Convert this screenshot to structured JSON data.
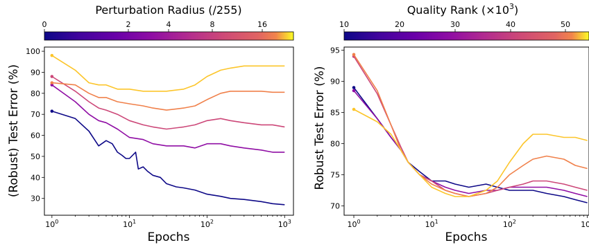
{
  "chart_data": [
    {
      "type": "line",
      "colorbar": {
        "title": "Perturbation Radius (/255)",
        "tick_labels": [
          "0",
          "2",
          "4",
          "8",
          "16"
        ],
        "colormap": "plasma"
      },
      "xlabel": "Epochs",
      "ylabel": "(Robust) Test Error (%)",
      "xscale": "log",
      "xlim": [
        0.8,
        1300
      ],
      "ylim": [
        22,
        102
      ],
      "xticks": [
        1,
        10,
        100,
        1000
      ],
      "xtick_labels": [
        "10",
        "10",
        "10",
        "10"
      ],
      "xtick_exponents": [
        "0",
        "1",
        "2",
        "3"
      ],
      "yticks": [
        30,
        40,
        50,
        60,
        70,
        80,
        90,
        100
      ],
      "ytick_labels": [
        "30",
        "40",
        "50",
        "60",
        "70",
        "80",
        "90",
        "100"
      ],
      "series": [
        {
          "color": "#0d0887",
          "x": [
            1,
            2,
            3,
            4,
            5,
            6,
            7,
            8,
            9,
            10,
            12,
            13,
            15,
            17,
            20,
            25,
            30,
            40,
            50,
            70,
            100,
            150,
            200,
            300,
            500,
            700,
            1000
          ],
          "y": [
            71.5,
            68,
            62,
            55,
            57.5,
            56,
            52,
            50.5,
            49,
            49,
            52,
            44,
            45,
            43,
            41,
            40,
            37,
            35.5,
            35,
            34,
            32,
            31,
            30,
            29.5,
            28.5,
            27.5,
            27
          ]
        },
        {
          "color": "#8f0da4",
          "x": [
            1,
            2,
            3,
            4,
            5,
            7,
            10,
            15,
            20,
            30,
            50,
            70,
            100,
            150,
            200,
            300,
            500,
            700,
            1000
          ],
          "y": [
            84,
            76,
            70,
            67,
            66,
            63,
            59,
            58,
            56,
            55,
            55,
            54,
            56,
            56,
            55,
            54,
            53,
            52,
            52
          ]
        },
        {
          "color": "#cc4778",
          "x": [
            1,
            2,
            3,
            4,
            5,
            7,
            10,
            15,
            20,
            30,
            50,
            70,
            100,
            150,
            200,
            300,
            500,
            700,
            1000
          ],
          "y": [
            88,
            81,
            76,
            73,
            72,
            70,
            67,
            65,
            64,
            63,
            64,
            65,
            67,
            68,
            67,
            66,
            65,
            65,
            64
          ]
        },
        {
          "color": "#f0804a",
          "x": [
            1,
            2,
            3,
            4,
            5,
            7,
            10,
            15,
            20,
            30,
            50,
            70,
            100,
            150,
            200,
            300,
            500,
            700,
            1000
          ],
          "y": [
            85,
            84,
            80,
            78,
            78,
            76,
            75,
            74,
            73,
            72,
            73,
            74,
            77,
            80,
            81,
            81,
            81,
            80.5,
            80.5
          ]
        },
        {
          "color": "#fcc52a",
          "x": [
            1,
            2,
            3,
            4,
            5,
            7,
            10,
            15,
            20,
            30,
            50,
            70,
            100,
            150,
            200,
            300,
            500,
            700,
            1000
          ],
          "y": [
            98,
            91,
            85,
            84,
            84,
            82,
            82,
            81,
            81,
            81,
            82,
            84,
            88,
            91,
            92,
            93,
            93,
            93,
            93
          ]
        }
      ]
    },
    {
      "type": "line",
      "colorbar": {
        "title": "Quality Rank (×10",
        "title_sup": "3",
        "title_end": ")",
        "tick_labels": [
          "10",
          "20",
          "30",
          "40",
          "50"
        ],
        "colormap": "plasma"
      },
      "xlabel": "Epochs",
      "ylabel": "Robust Test Error (%)",
      "xscale": "log",
      "xlim": [
        0.75,
        1050
      ],
      "ylim": [
        68.5,
        95.5
      ],
      "xticks": [
        1,
        10,
        100,
        1000
      ],
      "xtick_labels": [
        "10",
        "10",
        "10",
        "10"
      ],
      "xtick_exponents": [
        "0",
        "1",
        "2",
        "3"
      ],
      "yticks": [
        70,
        75,
        80,
        85,
        90,
        95
      ],
      "ytick_labels": [
        "70",
        "75",
        "80",
        "85",
        "90",
        "95"
      ],
      "series": [
        {
          "color": "#0d0887",
          "x": [
            1,
            2,
            3,
            4,
            5,
            7,
            10,
            15,
            20,
            30,
            50,
            70,
            100,
            150,
            200,
            300,
            500,
            700,
            1000
          ],
          "y": [
            89,
            84,
            81,
            79,
            77,
            75.5,
            74,
            74,
            73.5,
            73,
            73.5,
            73,
            72.5,
            72.5,
            72.5,
            72,
            71.5,
            71,
            70.5
          ]
        },
        {
          "color": "#8f0da4",
          "x": [
            1,
            2,
            3,
            4,
            5,
            7,
            10,
            15,
            20,
            30,
            50,
            70,
            100,
            150,
            200,
            300,
            500,
            700,
            1000
          ],
          "y": [
            88.5,
            84,
            81,
            79,
            77,
            75,
            74,
            73,
            72.5,
            72,
            72.5,
            72.5,
            73,
            73,
            73,
            73,
            72.5,
            72,
            71.5
          ]
        },
        {
          "color": "#cc4778",
          "x": [
            1,
            2,
            3,
            4,
            5,
            7,
            10,
            15,
            20,
            30,
            50,
            70,
            100,
            150,
            200,
            300,
            500,
            700,
            1000
          ],
          "y": [
            94,
            88,
            83,
            79.5,
            77,
            75,
            74,
            72.5,
            72,
            71.5,
            72,
            72.5,
            73,
            73.5,
            74,
            74,
            73.5,
            73,
            72.5
          ]
        },
        {
          "color": "#f0804a",
          "x": [
            1,
            2,
            3,
            4,
            5,
            7,
            10,
            15,
            20,
            30,
            50,
            70,
            100,
            150,
            200,
            300,
            500,
            700,
            1000
          ],
          "y": [
            94.3,
            88.5,
            83,
            79,
            77,
            75,
            73.5,
            72.5,
            72,
            71.5,
            72,
            73,
            75,
            76.5,
            77.5,
            78,
            77.5,
            76.5,
            76
          ]
        },
        {
          "color": "#fcc52a",
          "x": [
            1,
            2,
            3,
            4,
            5,
            7,
            10,
            15,
            20,
            30,
            50,
            70,
            100,
            150,
            200,
            300,
            500,
            700,
            1000
          ],
          "y": [
            85.5,
            83.5,
            81.5,
            79,
            77,
            75,
            73,
            72,
            71.5,
            71.5,
            72.5,
            74,
            77,
            80,
            81.5,
            81.5,
            81,
            81,
            80.5
          ]
        }
      ]
    }
  ]
}
